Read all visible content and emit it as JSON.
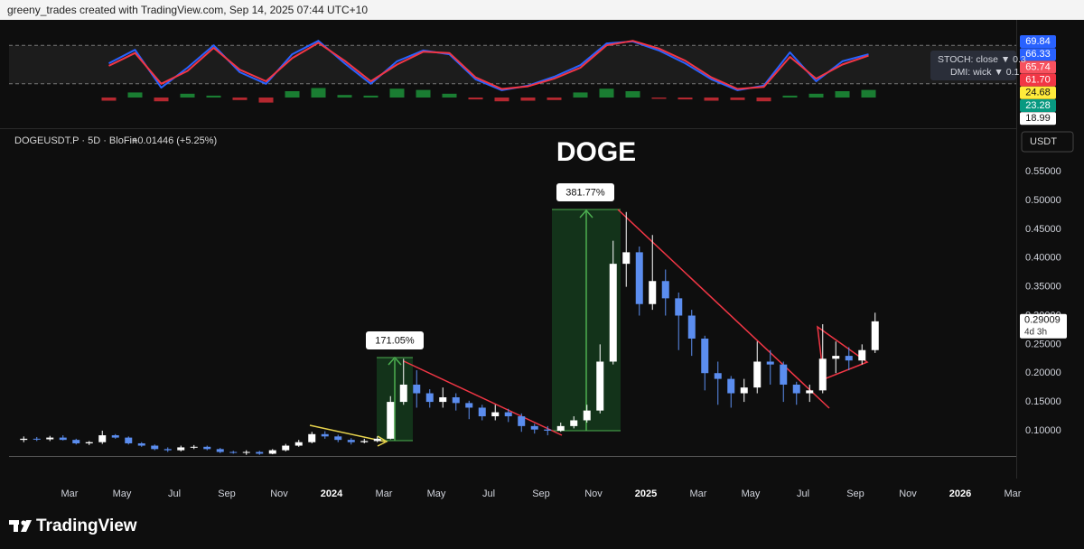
{
  "header": "greeny_trades created with TradingView.com, Sep 14, 2025 07:44 UTC+10",
  "footer_brand": "TradingView",
  "chart_data": [
    {
      "type": "candlestick",
      "title": "DOGE",
      "symbol": "DOGEUSDT.P · 5D · BloFin",
      "change": "+0.01446 (+5.25%)",
      "currency": "USDT",
      "x": [
        "2023-01",
        "2023-01",
        "2023-02",
        "2023-02",
        "2023-03",
        "2023-03",
        "2023-04",
        "2023-04",
        "2023-05",
        "2023-05",
        "2023-06",
        "2023-06",
        "2023-07",
        "2023-07",
        "2023-08",
        "2023-08",
        "2023-09",
        "2023-09",
        "2023-10",
        "2023-10",
        "2023-11",
        "2023-11",
        "2023-12",
        "2023-12",
        "2024-01",
        "2024-01",
        "2024-02",
        "2024-02",
        "2024-03",
        "2024-03",
        "2024-04",
        "2024-04",
        "2024-05",
        "2024-05",
        "2024-06",
        "2024-06",
        "2024-07",
        "2024-07",
        "2024-08",
        "2024-08",
        "2024-09",
        "2024-09",
        "2024-10",
        "2024-10",
        "2024-11",
        "2024-11",
        "2024-12",
        "2024-12",
        "2025-01",
        "2025-01",
        "2025-02",
        "2025-02",
        "2025-03",
        "2025-03",
        "2025-04",
        "2025-04",
        "2025-05",
        "2025-05",
        "2025-06",
        "2025-06",
        "2025-07",
        "2025-07",
        "2025-08",
        "2025-08",
        "2025-09",
        "2025-09"
      ],
      "open": [
        0.084,
        0.086,
        0.085,
        0.088,
        0.084,
        0.078,
        0.08,
        0.092,
        0.088,
        0.078,
        0.074,
        0.068,
        0.066,
        0.071,
        0.072,
        0.068,
        0.063,
        0.062,
        0.063,
        0.06,
        0.066,
        0.074,
        0.08,
        0.094,
        0.09,
        0.084,
        0.08,
        0.082,
        0.086,
        0.15,
        0.18,
        0.165,
        0.15,
        0.158,
        0.148,
        0.14,
        0.125,
        0.132,
        0.125,
        0.108,
        0.102,
        0.1,
        0.108,
        0.118,
        0.135,
        0.22,
        0.39,
        0.41,
        0.32,
        0.36,
        0.33,
        0.3,
        0.26,
        0.2,
        0.19,
        0.165,
        0.175,
        0.22,
        0.215,
        0.18,
        0.165,
        0.17,
        0.225,
        0.23,
        0.222,
        0.24
      ],
      "high": [
        0.09,
        0.089,
        0.091,
        0.092,
        0.086,
        0.082,
        0.1,
        0.094,
        0.09,
        0.08,
        0.076,
        0.071,
        0.074,
        0.075,
        0.074,
        0.07,
        0.065,
        0.066,
        0.065,
        0.068,
        0.077,
        0.084,
        0.098,
        0.099,
        0.093,
        0.087,
        0.086,
        0.09,
        0.16,
        0.225,
        0.205,
        0.172,
        0.175,
        0.165,
        0.152,
        0.145,
        0.145,
        0.138,
        0.13,
        0.112,
        0.108,
        0.114,
        0.125,
        0.145,
        0.25,
        0.43,
        0.48,
        0.42,
        0.44,
        0.38,
        0.34,
        0.31,
        0.265,
        0.22,
        0.195,
        0.19,
        0.255,
        0.24,
        0.22,
        0.185,
        0.18,
        0.285,
        0.255,
        0.245,
        0.25,
        0.305
      ],
      "low": [
        0.08,
        0.082,
        0.082,
        0.083,
        0.076,
        0.075,
        0.077,
        0.086,
        0.076,
        0.072,
        0.066,
        0.063,
        0.064,
        0.068,
        0.066,
        0.061,
        0.06,
        0.058,
        0.058,
        0.059,
        0.064,
        0.072,
        0.078,
        0.086,
        0.08,
        0.076,
        0.078,
        0.08,
        0.085,
        0.145,
        0.14,
        0.14,
        0.14,
        0.135,
        0.12,
        0.118,
        0.118,
        0.115,
        0.098,
        0.095,
        0.092,
        0.098,
        0.104,
        0.114,
        0.13,
        0.215,
        0.35,
        0.3,
        0.31,
        0.3,
        0.24,
        0.23,
        0.17,
        0.145,
        0.14,
        0.15,
        0.165,
        0.18,
        0.15,
        0.145,
        0.15,
        0.165,
        0.2,
        0.205,
        0.215,
        0.235
      ],
      "close": [
        0.086,
        0.085,
        0.088,
        0.084,
        0.078,
        0.08,
        0.092,
        0.088,
        0.078,
        0.074,
        0.068,
        0.066,
        0.071,
        0.072,
        0.068,
        0.063,
        0.062,
        0.063,
        0.06,
        0.066,
        0.074,
        0.08,
        0.094,
        0.09,
        0.084,
        0.08,
        0.082,
        0.086,
        0.15,
        0.18,
        0.165,
        0.15,
        0.158,
        0.148,
        0.14,
        0.125,
        0.132,
        0.125,
        0.108,
        0.102,
        0.1,
        0.108,
        0.118,
        0.135,
        0.22,
        0.39,
        0.41,
        0.32,
        0.36,
        0.33,
        0.3,
        0.26,
        0.2,
        0.19,
        0.165,
        0.175,
        0.22,
        0.215,
        0.18,
        0.165,
        0.17,
        0.225,
        0.23,
        0.222,
        0.24,
        0.29
      ],
      "up_color": "#ffffff",
      "down_color": "#5b8def",
      "ylim": [
        0.056,
        0.624
      ],
      "yticks": [
        {
          "value": 0.1,
          "label": "0.10000"
        },
        {
          "value": 0.15,
          "label": "0.15000"
        },
        {
          "value": 0.2,
          "label": "0.20000"
        },
        {
          "value": 0.25,
          "label": "0.25000"
        },
        {
          "value": 0.3,
          "label": "0.30000"
        },
        {
          "value": 0.35,
          "label": "0.35000"
        },
        {
          "value": 0.4,
          "label": "0.40000"
        },
        {
          "value": 0.45,
          "label": "0.45000"
        },
        {
          "value": 0.5,
          "label": "0.50000"
        },
        {
          "value": 0.55,
          "label": "0.55000"
        }
      ],
      "xlim": [
        "2023-01",
        "2026-03"
      ],
      "xticks": [
        {
          "value": "2023-03",
          "label": "Mar"
        },
        {
          "value": "2023-05",
          "label": "May"
        },
        {
          "value": "2023-07",
          "label": "Jul"
        },
        {
          "value": "2023-09",
          "label": "Sep"
        },
        {
          "value": "2023-11",
          "label": "Nov"
        },
        {
          "value": "2024-01",
          "label": "2024"
        },
        {
          "value": "2024-03",
          "label": "Mar"
        },
        {
          "value": "2024-05",
          "label": "May"
        },
        {
          "value": "2024-07",
          "label": "Jul"
        },
        {
          "value": "2024-09",
          "label": "Sep"
        },
        {
          "value": "2024-11",
          "label": "Nov"
        },
        {
          "value": "2025-01",
          "label": "2025"
        },
        {
          "value": "2025-03",
          "label": "Mar"
        },
        {
          "value": "2025-05",
          "label": "May"
        },
        {
          "value": "2025-07",
          "label": "Jul"
        },
        {
          "value": "2025-09",
          "label": "Sep"
        },
        {
          "value": "2025-11",
          "label": "Nov"
        },
        {
          "value": "2026-01",
          "label": "2026"
        },
        {
          "value": "2026-03",
          "label": "Mar"
        }
      ],
      "annotations": [
        "171.05%",
        "381.77%"
      ],
      "last_price": 0.29009,
      "countdown": "4d 3h"
    },
    {
      "type": "oscillator",
      "legend": [
        "STOCH: close ▼ 0.3",
        "DMI: wick ▼ 0.1"
      ],
      "x": [
        "2023-01",
        "2023-02",
        "2023-03",
        "2023-04",
        "2023-05",
        "2023-06",
        "2023-07",
        "2023-08",
        "2023-09",
        "2023-10",
        "2023-11",
        "2023-12",
        "2024-01",
        "2024-02",
        "2024-03",
        "2024-04",
        "2024-05",
        "2024-06",
        "2024-07",
        "2024-08",
        "2024-09",
        "2024-10",
        "2024-11",
        "2024-12",
        "2025-01",
        "2025-02",
        "2025-03",
        "2025-04",
        "2025-05",
        "2025-06",
        "2025-07",
        "2025-08",
        "2025-09"
      ],
      "series": [
        {
          "color": "#2962ff",
          "values": [
            null,
            null,
            null,
            52,
            73,
            14,
            45,
            80,
            38,
            20,
            66,
            87,
            52,
            20,
            55,
            72,
            66,
            27,
            10,
            17,
            31,
            49,
            83,
            86,
            72,
            52,
            27,
            10,
            17,
            69,
            24,
            55,
            66
          ]
        },
        {
          "color": "#f23645",
          "values": [
            null,
            null,
            null,
            48,
            68,
            20,
            40,
            76,
            42,
            24,
            60,
            84,
            56,
            24,
            50,
            70,
            68,
            30,
            12,
            16,
            28,
            45,
            80,
            87,
            75,
            56,
            30,
            12,
            15,
            62,
            28,
            50,
            64
          ]
        }
      ],
      "histogram": {
        "values": [
          null,
          null,
          null,
          -5,
          8,
          -6,
          6,
          3,
          -4,
          -8,
          10,
          15,
          4,
          3,
          14,
          12,
          6,
          -3,
          -6,
          -5,
          -4,
          8,
          14,
          10,
          -2,
          -3,
          -5,
          -4,
          -6,
          3,
          6,
          10,
          12
        ],
        "ylim": [
          -20,
          20
        ],
        "up_color": "#1e9a3c",
        "down_color": "#e0303a"
      },
      "ylim": [
        0,
        100
      ],
      "bands": [
        20,
        80
      ],
      "last_values": [
        69.84,
        66.33,
        65.74,
        {
          "value": 61.7,
          "label": "61.70"
        },
        24.68,
        23.28,
        18.99
      ],
      "last_colors": [
        "#2962ff",
        "#2962ff",
        "#f7525f",
        "#f23645",
        "#ffeb3b",
        "#089981",
        "#ffffff"
      ]
    }
  ]
}
